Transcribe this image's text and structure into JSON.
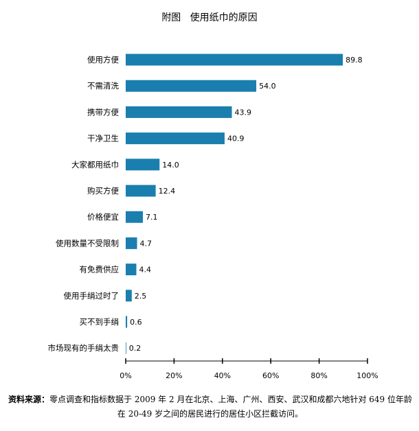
{
  "chart_data": {
    "type": "bar",
    "orientation": "horizontal",
    "title": "附图   使用纸巾的原因",
    "categories": [
      "使用方便",
      "不需清洗",
      "携带方便",
      "干净卫生",
      "大家都用纸巾",
      "购买方便",
      "价格便宜",
      "使用数量不受限制",
      "有免费供应",
      "使用手绢过时了",
      "买不到手绢",
      "市场现有的手绢太贵"
    ],
    "values": [
      89.8,
      54.0,
      43.9,
      40.9,
      14.0,
      12.4,
      7.1,
      4.7,
      4.4,
      2.5,
      0.6,
      0.2
    ],
    "value_labels": [
      "89.8",
      "54.0",
      "43.9",
      "40.9",
      "14.0",
      "12.4",
      "7.1",
      "4.7",
      "4.4",
      "2.5",
      "0.6",
      "0.2"
    ],
    "xlim": [
      0,
      100
    ],
    "x_ticks": [
      "0%",
      "20%",
      "40%",
      "60%",
      "80%",
      "100%"
    ],
    "bar_color": "#1a7fae",
    "grid": false
  },
  "source": {
    "label": "资料来源：",
    "text": "零点调查和指标数据于 2009 年 2 月在北京、上海、广州、西安、武汉和成都六地针对 649 位年龄在 20-49 岁之间的居民进行的居住小区拦截访问。"
  }
}
